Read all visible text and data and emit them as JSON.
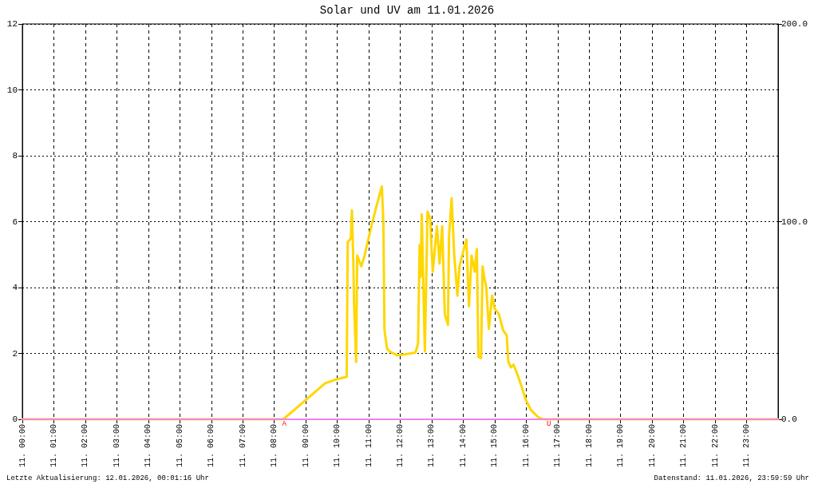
{
  "chart_data": {
    "type": "line",
    "title": "Solar und UV am 11.01.2026",
    "xlim": [
      "2026-01-11T00:00",
      "2026-01-12T00:00"
    ],
    "xticks": [
      {
        "value": "2026-01-11T00:00",
        "label": "11. 00:00"
      },
      {
        "value": "2026-01-11T01:00",
        "label": "11. 01:00"
      },
      {
        "value": "2026-01-11T02:00",
        "label": "11. 02:00"
      },
      {
        "value": "2026-01-11T03:00",
        "label": "11. 03:00"
      },
      {
        "value": "2026-01-11T04:00",
        "label": "11. 04:00"
      },
      {
        "value": "2026-01-11T05:00",
        "label": "11. 05:00"
      },
      {
        "value": "2026-01-11T06:00",
        "label": "11. 06:00"
      },
      {
        "value": "2026-01-11T07:00",
        "label": "11. 07:00"
      },
      {
        "value": "2026-01-11T08:00",
        "label": "11. 08:00"
      },
      {
        "value": "2026-01-11T09:00",
        "label": "11. 09:00"
      },
      {
        "value": "2026-01-11T10:00",
        "label": "11. 10:00"
      },
      {
        "value": "2026-01-11T11:00",
        "label": "11. 11:00"
      },
      {
        "value": "2026-01-11T12:00",
        "label": "11. 12:00"
      },
      {
        "value": "2026-01-11T13:00",
        "label": "11. 13:00"
      },
      {
        "value": "2026-01-11T14:00",
        "label": "11. 14:00"
      },
      {
        "value": "2026-01-11T15:00",
        "label": "11. 15:00"
      },
      {
        "value": "2026-01-11T16:00",
        "label": "11. 16:00"
      },
      {
        "value": "2026-01-11T17:00",
        "label": "11. 17:00"
      },
      {
        "value": "2026-01-11T18:00",
        "label": "11. 18:00"
      },
      {
        "value": "2026-01-11T19:00",
        "label": "11. 19:00"
      },
      {
        "value": "2026-01-11T20:00",
        "label": "11. 20:00"
      },
      {
        "value": "2026-01-11T21:00",
        "label": "11. 21:00"
      },
      {
        "value": "2026-01-11T22:00",
        "label": "11. 22:00"
      },
      {
        "value": "2026-01-11T23:00",
        "label": "11. 23:00"
      }
    ],
    "ylim": [
      0,
      12
    ],
    "yticks": [
      0,
      2,
      4,
      6,
      8,
      10,
      12
    ],
    "y2lim": [
      0,
      200
    ],
    "y2ticks": [
      {
        "value": 0,
        "label": "0.0"
      },
      {
        "value": 100,
        "label": "100.0"
      },
      {
        "value": 200,
        "label": "200.0"
      }
    ],
    "grid": true,
    "marker": "none",
    "line_style": "solid",
    "series": [
      {
        "color": "#ffd700",
        "axis": "y2",
        "x": [
          "2026-01-11T00:00",
          "2026-01-11T08:17",
          "2026-01-11T08:56",
          "2026-01-11T09:37",
          "2026-01-11T09:58",
          "2026-01-11T10:18",
          "2026-01-11T10:19",
          "2026-01-11T10:20",
          "2026-01-11T10:26",
          "2026-01-11T10:28",
          "2026-01-11T10:31",
          "2026-01-11T10:32",
          "2026-01-11T10:36",
          "2026-01-11T10:38",
          "2026-01-11T10:46",
          "2026-01-11T10:52",
          "2026-01-11T10:59",
          "2026-01-11T11:07",
          "2026-01-11T11:14",
          "2026-01-11T11:25",
          "2026-01-11T11:28",
          "2026-01-11T11:30",
          "2026-01-11T11:35",
          "2026-01-11T11:40",
          "2026-01-11T11:55",
          "2026-01-11T12:29",
          "2026-01-11T12:34",
          "2026-01-11T12:37",
          "2026-01-11T12:39",
          "2026-01-11T12:41",
          "2026-01-11T12:47",
          "2026-01-11T12:52",
          "2026-01-11T12:57",
          "2026-01-11T13:02",
          "2026-01-11T13:10",
          "2026-01-11T13:15",
          "2026-01-11T13:20",
          "2026-01-11T13:25",
          "2026-01-11T13:31",
          "2026-01-11T13:33",
          "2026-01-11T13:38",
          "2026-01-11T13:43",
          "2026-01-11T13:49",
          "2026-01-11T13:53",
          "2026-01-11T13:58",
          "2026-01-11T14:06",
          "2026-01-11T14:11",
          "2026-01-11T14:16",
          "2026-01-11T14:22",
          "2026-01-11T14:26",
          "2026-01-11T14:29",
          "2026-01-11T14:34",
          "2026-01-11T14:37",
          "2026-01-11T14:40",
          "2026-01-11T14:44",
          "2026-01-11T14:49",
          "2026-01-11T14:55",
          "2026-01-11T15:00",
          "2026-01-11T15:08",
          "2026-01-11T15:16",
          "2026-01-11T15:23",
          "2026-01-11T15:26",
          "2026-01-11T15:31",
          "2026-01-11T15:36",
          "2026-01-11T15:44",
          "2026-01-11T15:51",
          "2026-01-11T15:59",
          "2026-01-11T16:09",
          "2026-01-11T16:22",
          "2026-01-11T16:32",
          "2026-01-12T00:00"
        ],
        "values": [
          0,
          0,
          8.8,
          18.2,
          20.2,
          21.5,
          57.2,
          89.6,
          91.6,
          105.7,
          76.1,
          58.6,
          29.0,
          82.8,
          77.4,
          82.8,
          90.9,
          99.7,
          107.1,
          117.8,
          99.0,
          45.1,
          35.7,
          34.3,
          32.3,
          33.7,
          38.4,
          88.2,
          72.0,
          103.7,
          34.3,
          105.0,
          101.7,
          74.7,
          97.6,
          78.8,
          97.6,
          53.2,
          47.8,
          92.2,
          111.8,
          82.8,
          62.6,
          77.4,
          82.8,
          90.9,
          57.2,
          82.8,
          74.7,
          86.2,
          31.6,
          31.0,
          77.4,
          72.0,
          66.7,
          45.8,
          62.6,
          55.9,
          53.2,
          45.1,
          42.4,
          29.0,
          26.3,
          27.6,
          22.2,
          16.8,
          10.1,
          4.7,
          1.3,
          0,
          0
        ]
      },
      {
        "color": "#ee82ee",
        "x": [
          "2026-01-11T00:00",
          "2026-01-12T00:00"
        ],
        "values": [
          0,
          0
        ]
      }
    ],
    "annotations": [
      {
        "text": "A",
        "x": "2026-01-11T08:19",
        "y": 0
      },
      {
        "text": "U",
        "x": "2026-01-11T16:43",
        "y": 0
      },
      "Letzte Aktualisierung: 12.01.2026, 00:01:16 Uhr",
      "Datenstand: 11.01.2026, 23:59:59 Uhr"
    ]
  }
}
